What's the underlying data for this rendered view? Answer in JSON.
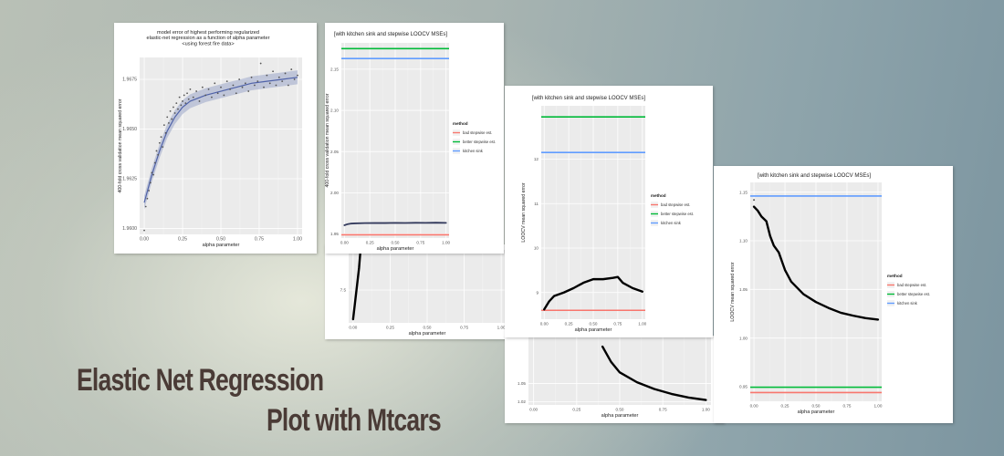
{
  "headline": {
    "line1": "Elastic Net Regression",
    "line2": "Plot with Mtcars"
  },
  "colors": {
    "bad": "#f8766d",
    "better": "#00ba38",
    "kitchen": "#619cff",
    "line": "#000000",
    "panel": "#ebebeb"
  },
  "chart_data": [
    {
      "type": "scatter",
      "title": "model error of highest performing regularized\nelastic-net regression as a function of alpha parameter\n<using forest fire data>",
      "xlabel": "alpha parameter",
      "ylabel": "400-fold cross validation mean squared error",
      "xlim": [
        -0.03,
        1.03
      ],
      "ylim": [
        1.9597,
        1.9686
      ],
      "x_ticks": [
        0.0,
        0.25,
        0.5,
        0.75,
        1.0
      ],
      "x_tick_labels": [
        "0.00",
        "0.25",
        "0.50",
        "0.75",
        "1.00"
      ],
      "y_ticks": [
        1.96,
        1.9625,
        1.965,
        1.9675
      ],
      "y_tick_labels": [
        "1.9600",
        "1.9625",
        "1.9650",
        "1.9675"
      ],
      "points": [
        [
          0.0,
          1.9599
        ],
        [
          0.01,
          1.9611
        ],
        [
          0.02,
          1.9615
        ],
        [
          0.03,
          1.9619
        ],
        [
          0.04,
          1.9623
        ],
        [
          0.05,
          1.9628
        ],
        [
          0.06,
          1.9627
        ],
        [
          0.07,
          1.9633
        ],
        [
          0.08,
          1.9639
        ],
        [
          0.09,
          1.9637
        ],
        [
          0.1,
          1.9643
        ],
        [
          0.11,
          1.9646
        ],
        [
          0.12,
          1.9641
        ],
        [
          0.13,
          1.9652
        ],
        [
          0.14,
          1.9648
        ],
        [
          0.15,
          1.9656
        ],
        [
          0.16,
          1.9653
        ],
        [
          0.17,
          1.9659
        ],
        [
          0.18,
          1.9655
        ],
        [
          0.19,
          1.9661
        ],
        [
          0.2,
          1.9658
        ],
        [
          0.21,
          1.9663
        ],
        [
          0.22,
          1.966
        ],
        [
          0.23,
          1.9666
        ],
        [
          0.24,
          1.9662
        ],
        [
          0.25,
          1.9664
        ],
        [
          0.26,
          1.9667
        ],
        [
          0.27,
          1.9663
        ],
        [
          0.28,
          1.9668
        ],
        [
          0.29,
          1.9665
        ],
        [
          0.3,
          1.967
        ],
        [
          0.32,
          1.9666
        ],
        [
          0.34,
          1.9669
        ],
        [
          0.36,
          1.9664
        ],
        [
          0.38,
          1.9671
        ],
        [
          0.4,
          1.9667
        ],
        [
          0.42,
          1.967
        ],
        [
          0.44,
          1.9666
        ],
        [
          0.46,
          1.9673
        ],
        [
          0.48,
          1.9668
        ],
        [
          0.5,
          1.9671
        ],
        [
          0.52,
          1.9667
        ],
        [
          0.54,
          1.9674
        ],
        [
          0.56,
          1.967
        ],
        [
          0.58,
          1.9672
        ],
        [
          0.6,
          1.9668
        ],
        [
          0.62,
          1.9675
        ],
        [
          0.64,
          1.9671
        ],
        [
          0.66,
          1.9673
        ],
        [
          0.68,
          1.9669
        ],
        [
          0.7,
          1.9676
        ],
        [
          0.72,
          1.9672
        ],
        [
          0.74,
          1.9674
        ],
        [
          0.76,
          1.9683
        ],
        [
          0.78,
          1.9671
        ],
        [
          0.8,
          1.9677
        ],
        [
          0.82,
          1.9673
        ],
        [
          0.84,
          1.9679
        ],
        [
          0.86,
          1.9672
        ],
        [
          0.88,
          1.9676
        ],
        [
          0.9,
          1.9674
        ],
        [
          0.92,
          1.9678
        ],
        [
          0.94,
          1.9672
        ],
        [
          0.96,
          1.968
        ],
        [
          0.98,
          1.9675
        ],
        [
          1.0,
          1.9677
        ]
      ],
      "smooth": [
        [
          0.0,
          1.9613
        ],
        [
          0.05,
          1.9627
        ],
        [
          0.1,
          1.9639
        ],
        [
          0.15,
          1.9649
        ],
        [
          0.2,
          1.9656
        ],
        [
          0.25,
          1.9661
        ],
        [
          0.3,
          1.9664
        ],
        [
          0.4,
          1.9667
        ],
        [
          0.5,
          1.9669
        ],
        [
          0.6,
          1.9671
        ],
        [
          0.7,
          1.9673
        ],
        [
          0.8,
          1.9674
        ],
        [
          0.9,
          1.9675
        ],
        [
          1.0,
          1.9676
        ]
      ]
    },
    {
      "type": "line",
      "title": "[with kitchen sink and stepwise LOOCV MSEs]",
      "xlabel": "alpha parameter",
      "ylabel": "400-fold cross validation mean squared error",
      "xlim": [
        -0.03,
        1.03
      ],
      "ylim": [
        1.945,
        2.182
      ],
      "x_ticks": [
        0.0,
        0.25,
        0.5,
        0.75,
        1.0
      ],
      "x_tick_labels": [
        "0.00",
        "0.25",
        "0.50",
        "0.75",
        "1.00"
      ],
      "y_ticks": [
        1.95,
        2.0,
        2.05,
        2.1,
        2.15
      ],
      "y_tick_labels": [
        "1.95",
        "2.00",
        "2.05",
        "2.10",
        "2.15"
      ],
      "hlines": [
        {
          "name": "bad stepwise est.",
          "value": 1.949,
          "color": "#f8766d"
        },
        {
          "name": "better stepwise est.",
          "value": 2.175,
          "color": "#00ba38"
        },
        {
          "name": "kitchen sink",
          "value": 2.163,
          "color": "#619cff"
        }
      ],
      "line": [
        [
          0.0,
          1.9605
        ],
        [
          0.03,
          1.9618
        ],
        [
          0.06,
          1.9625
        ],
        [
          0.1,
          1.9628
        ],
        [
          0.2,
          1.9631
        ],
        [
          0.3,
          1.9633
        ],
        [
          0.4,
          1.9632
        ],
        [
          0.5,
          1.9634
        ],
        [
          0.6,
          1.9633
        ],
        [
          0.7,
          1.9635
        ],
        [
          0.8,
          1.9634
        ],
        [
          0.9,
          1.9636
        ],
        [
          1.0,
          1.9634
        ]
      ],
      "legend_title": "method",
      "legend": [
        "bad stepwise est.",
        "better stepwise est.",
        "kitchen sink"
      ],
      "legend_position": "right"
    },
    {
      "type": "line",
      "xlabel": "alpha parameter",
      "xlim": [
        -0.03,
        1.03
      ],
      "ylim": [
        6.6,
        8.6
      ],
      "x_ticks": [
        0.0,
        0.25,
        0.5,
        0.75,
        1.0
      ],
      "x_tick_labels": [
        "0.00",
        "0.25",
        "0.50",
        "0.75",
        "1.00"
      ],
      "y_ticks": [
        7.5
      ],
      "y_tick_labels": [
        "7.5"
      ],
      "line": [
        [
          0.0,
          6.7
        ],
        [
          0.02,
          7.4
        ],
        [
          0.04,
          8.1
        ],
        [
          0.05,
          8.6
        ]
      ]
    },
    {
      "type": "line",
      "title": "[with kitchen sink and stepwise LOOCV MSEs]",
      "xlabel": "alpha parameter",
      "ylabel": "LOOCV mean squared error",
      "xlim": [
        -0.03,
        1.03
      ],
      "ylim": [
        8.4,
        13.2
      ],
      "x_ticks": [
        0.0,
        0.25,
        0.5,
        0.75,
        1.0
      ],
      "x_tick_labels": [
        "0.00",
        "0.25",
        "0.50",
        "0.75",
        "1.00"
      ],
      "y_ticks": [
        9,
        10,
        11,
        12
      ],
      "y_tick_labels": [
        "9",
        "10",
        "11",
        "12"
      ],
      "hlines": [
        {
          "name": "bad stepwise est.",
          "value": 8.6,
          "color": "#f8766d"
        },
        {
          "name": "better stepwise est.",
          "value": 12.95,
          "color": "#00ba38"
        },
        {
          "name": "kitchen sink",
          "value": 12.15,
          "color": "#619cff"
        }
      ],
      "line": [
        [
          0.0,
          8.62
        ],
        [
          0.05,
          8.8
        ],
        [
          0.1,
          8.92
        ],
        [
          0.2,
          9.0
        ],
        [
          0.3,
          9.1
        ],
        [
          0.4,
          9.22
        ],
        [
          0.5,
          9.3
        ],
        [
          0.6,
          9.3
        ],
        [
          0.7,
          9.33
        ],
        [
          0.75,
          9.35
        ],
        [
          0.8,
          9.22
        ],
        [
          0.9,
          9.1
        ],
        [
          1.0,
          9.02
        ]
      ],
      "legend_title": "method",
      "legend": [
        "bad stepwise est.",
        "better stepwise est.",
        "kitchen sink"
      ],
      "legend_position": "right"
    },
    {
      "type": "line",
      "xlabel": "alpha parameter",
      "xlim": [
        -0.03,
        1.03
      ],
      "ylim": [
        1.015,
        1.125
      ],
      "x_ticks": [
        0.0,
        0.25,
        0.5,
        0.75,
        1.0
      ],
      "x_tick_labels": [
        "0.00",
        "0.25",
        "0.50",
        "0.75",
        "1.00"
      ],
      "y_ticks": [
        1.02,
        1.05
      ],
      "y_tick_labels": [
        "1.02",
        "1.05"
      ],
      "line": [
        [
          0.4,
          1.11
        ],
        [
          0.45,
          1.085
        ],
        [
          0.5,
          1.068
        ],
        [
          0.6,
          1.052
        ],
        [
          0.7,
          1.041
        ],
        [
          0.8,
          1.033
        ],
        [
          0.9,
          1.027
        ],
        [
          1.0,
          1.023
        ]
      ]
    },
    {
      "type": "line",
      "title": "[with kitchen sink and stepwise LOOCV MSEs]",
      "xlabel": "alpha parameter",
      "ylabel": "LOOCV mean squared error",
      "xlim": [
        -0.03,
        1.03
      ],
      "ylim": [
        0.935,
        1.16
      ],
      "x_ticks": [
        0.0,
        0.25,
        0.5,
        0.75,
        1.0
      ],
      "x_tick_labels": [
        "0.00",
        "0.25",
        "0.50",
        "0.75",
        "1.00"
      ],
      "y_ticks": [
        0.95,
        1.0,
        1.05,
        1.1,
        1.15
      ],
      "y_tick_labels": [
        "0.95",
        "1.00",
        "1.05",
        "1.10",
        "1.15"
      ],
      "hlines": [
        {
          "name": "bad stepwise est.",
          "value": 0.944,
          "color": "#f8766d"
        },
        {
          "name": "better stepwise est.",
          "value": 0.9495,
          "color": "#00ba38"
        },
        {
          "name": "kitchen sink",
          "value": 1.146,
          "color": "#619cff"
        }
      ],
      "points": [
        [
          0.0,
          1.142
        ]
      ],
      "line": [
        [
          0.0,
          1.135
        ],
        [
          0.03,
          1.131
        ],
        [
          0.06,
          1.125
        ],
        [
          0.1,
          1.12
        ],
        [
          0.13,
          1.105
        ],
        [
          0.16,
          1.095
        ],
        [
          0.2,
          1.088
        ],
        [
          0.25,
          1.07
        ],
        [
          0.3,
          1.058
        ],
        [
          0.4,
          1.045
        ],
        [
          0.5,
          1.037
        ],
        [
          0.6,
          1.031
        ],
        [
          0.7,
          1.026
        ],
        [
          0.8,
          1.023
        ],
        [
          0.9,
          1.0205
        ],
        [
          1.0,
          1.019
        ]
      ],
      "legend_title": "method",
      "legend": [
        "bad stepwise est.",
        "better stepwise est.",
        "kitchen sink"
      ],
      "legend_position": "right"
    }
  ]
}
